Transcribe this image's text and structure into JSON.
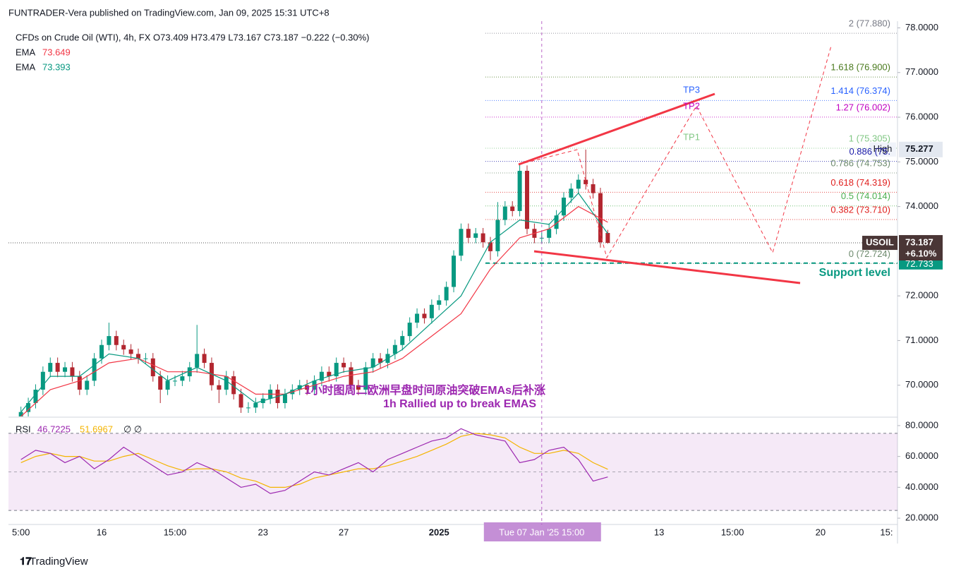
{
  "chart_data": {
    "type": "candlestick",
    "title": "FUNTRADER-Vera published on TradingView.com, Jan 09, 2025 15:31 UTC+8",
    "legend": "CFDs on Crude Oil (WTI), 4h, FX  O73.409  H73.479  L73.167  C73.187  −0.222 (−0.30%)",
    "up_color": "#089981",
    "down_color": "#b2262f",
    "open": [
      69.3,
      69.4,
      69.6,
      69.9,
      70.3,
      70.5,
      70.3,
      70.4,
      70.2,
      69.9,
      70.1,
      70.6,
      70.9,
      71.1,
      70.9,
      70.8,
      70.7,
      70.6,
      70.6,
      70.2,
      69.9,
      70.1,
      70.1,
      70.2,
      70.4,
      70.7,
      70.5,
      70.0,
      69.9,
      70.2,
      69.8,
      69.5,
      69.5,
      69.6,
      69.7,
      69.9,
      69.6,
      69.8,
      69.9,
      70.0,
      69.9,
      70.1,
      70.3,
      70.2,
      70.5,
      70.4,
      70.0,
      69.9,
      70.4,
      70.6,
      70.5,
      70.7,
      70.9,
      71.1,
      71.4,
      71.6,
      71.5,
      71.8,
      71.9,
      72.2,
      72.9,
      73.5,
      73.3,
      73.4,
      73.2,
      73.0,
      73.7,
      74.0,
      73.9,
      74.8,
      73.5,
      73.3,
      73.3,
      73.5,
      73.8,
      74.2,
      74.4,
      74.6,
      74.5,
      74.3,
      73.409
    ],
    "high": [
      69.52,
      69.72,
      70.02,
      70.42,
      70.62,
      70.62,
      70.52,
      70.52,
      70.32,
      70.22,
      70.72,
      71.02,
      71.4,
      71.22,
      71.02,
      70.92,
      70.82,
      70.72,
      70.72,
      70.32,
      70.22,
      70.22,
      70.32,
      70.52,
      71.35,
      70.82,
      70.62,
      70.12,
      70.32,
      70.32,
      69.92,
      69.62,
      69.72,
      69.82,
      70.02,
      70.02,
      69.92,
      70.02,
      70.12,
      70.12,
      70.22,
      70.42,
      70.42,
      70.62,
      70.62,
      70.52,
      70.12,
      70.52,
      70.72,
      70.72,
      70.82,
      71.02,
      71.22,
      71.52,
      71.72,
      71.72,
      71.92,
      72.02,
      72.32,
      73.02,
      73.62,
      73.62,
      73.52,
      73.52,
      73.32,
      74.1,
      74.12,
      74.12,
      74.95,
      74.92,
      73.62,
      73.42,
      73.62,
      73.92,
      74.32,
      74.52,
      74.72,
      75.277,
      74.62,
      74.42,
      73.479
    ],
    "low": [
      69.18,
      69.28,
      69.48,
      69.78,
      70.18,
      70.18,
      70.18,
      70.08,
      69.78,
      69.78,
      69.98,
      70.48,
      70.78,
      70.78,
      70.68,
      70.58,
      70.48,
      70.48,
      70.08,
      69.6,
      69.78,
      69.98,
      69.98,
      70.08,
      70.28,
      70.38,
      69.88,
      69.6,
      69.78,
      69.68,
      69.38,
      69.38,
      69.38,
      69.48,
      69.58,
      69.48,
      69.48,
      69.68,
      69.78,
      69.78,
      69.78,
      69.98,
      70.08,
      70.08,
      70.28,
      69.88,
      69.78,
      69.78,
      70.28,
      70.38,
      70.38,
      70.58,
      70.78,
      70.98,
      71.28,
      71.38,
      71.38,
      71.68,
      71.78,
      72.08,
      72.78,
      73.18,
      73.18,
      73.08,
      72.8,
      72.88,
      73.58,
      73.78,
      73.78,
      73.38,
      73.18,
      73.18,
      73.18,
      73.38,
      73.68,
      74.08,
      74.28,
      74.38,
      74.18,
      73.08,
      73.167
    ],
    "close": [
      69.4,
      69.6,
      69.9,
      70.3,
      70.5,
      70.3,
      70.4,
      70.2,
      69.9,
      70.1,
      70.6,
      70.9,
      71.1,
      70.9,
      70.8,
      70.7,
      70.6,
      70.6,
      70.2,
      69.9,
      70.1,
      70.1,
      70.2,
      70.4,
      70.7,
      70.5,
      70.0,
      69.9,
      70.2,
      69.8,
      69.5,
      69.5,
      69.6,
      69.7,
      69.9,
      69.6,
      69.8,
      69.9,
      70.0,
      69.9,
      70.1,
      70.3,
      70.2,
      70.5,
      70.4,
      70.0,
      69.9,
      70.4,
      70.6,
      70.5,
      70.7,
      70.9,
      71.1,
      71.4,
      71.6,
      71.5,
      71.8,
      71.9,
      72.2,
      72.9,
      73.5,
      73.3,
      73.4,
      73.2,
      73.0,
      73.7,
      74.0,
      73.9,
      74.8,
      73.5,
      73.3,
      73.3,
      73.5,
      73.8,
      74.2,
      74.4,
      74.6,
      74.5,
      74.3,
      73.2,
      73.187
    ],
    "xlim": [
      -1.7,
      119.5
    ],
    "xticks": [
      {
        "value": 0,
        "label": "5:00"
      },
      {
        "value": 11,
        "label": "16"
      },
      {
        "value": 21,
        "label": "15:00"
      },
      {
        "value": 33,
        "label": "23"
      },
      {
        "value": 44,
        "label": "27"
      },
      {
        "value": 57,
        "label": "2025"
      },
      {
        "value": 71,
        "label": "Tue 07 Jan '25   15:00"
      },
      {
        "value": 87,
        "label": "13"
      },
      {
        "value": 97,
        "label": "15:00"
      },
      {
        "value": 109,
        "label": "20"
      },
      {
        "value": 118,
        "label": "15:"
      }
    ],
    "ylim": [
      69.3,
      78.15
    ],
    "yticks": [
      {
        "value": 70,
        "label": "70.0000"
      },
      {
        "value": 71,
        "label": "71.0000"
      },
      {
        "value": 72,
        "label": "72.0000"
      },
      {
        "value": 74,
        "label": "74.0000"
      },
      {
        "value": 75,
        "label": "75.0000"
      },
      {
        "value": 76,
        "label": "76.0000"
      },
      {
        "value": 77,
        "label": "77.0000"
      },
      {
        "value": 78,
        "label": "78.0000"
      }
    ],
    "grid": false,
    "ema": [
      {
        "name": "EMA",
        "color": "#f23645",
        "x": [
          0,
          4,
          8,
          12,
          16,
          20,
          24,
          28,
          32,
          36,
          40,
          44,
          48,
          52,
          56,
          60,
          64,
          68,
          72,
          76,
          80
        ],
        "values": [
          69.3,
          69.9,
          70.1,
          70.5,
          70.6,
          70.3,
          70.3,
          70.2,
          69.8,
          69.8,
          70.0,
          70.2,
          70.3,
          70.6,
          71.1,
          71.6,
          72.6,
          73.3,
          73.5,
          74.0,
          73.649
        ]
      },
      {
        "name": "EMA",
        "color": "#089981",
        "x": [
          0,
          4,
          8,
          12,
          16,
          20,
          24,
          28,
          32,
          36,
          40,
          44,
          48,
          52,
          56,
          60,
          64,
          68,
          72,
          76,
          80
        ],
        "values": [
          69.4,
          70.2,
          70.2,
          70.7,
          70.6,
          70.1,
          70.4,
          70.1,
          69.6,
          69.8,
          70.1,
          70.3,
          70.4,
          70.8,
          71.4,
          72.0,
          73.2,
          73.7,
          73.6,
          74.3,
          73.393
        ]
      }
    ],
    "fib": [
      {
        "label": "2 (77.880)",
        "value": 77.88,
        "color": "#787b86"
      },
      {
        "label": "1.618 (76.900)",
        "value": 76.9,
        "color": "#4a7a1e"
      },
      {
        "label": "1.414 (76.374)",
        "value": 76.374,
        "color": "#2962ff"
      },
      {
        "label": "1.27 (76.002)",
        "value": 76.002,
        "color": "#c000c0"
      },
      {
        "label": "1 (75.305)",
        "value": 75.305,
        "color": "#81c784"
      },
      {
        "label": "0.886 (75.",
        "value": 75.011,
        "color": "#1a1aa8"
      },
      {
        "label": "0.786 (74.753)",
        "value": 74.753,
        "color": "#6d8a6d"
      },
      {
        "label": "0.618 (74.319)",
        "value": 74.319,
        "color": "#e0201e"
      },
      {
        "label": "0.5 (74.014)",
        "value": 74.014,
        "color": "#4caf50"
      },
      {
        "label": "0.382 (73.710)",
        "value": 73.71,
        "color": "#e0201e"
      },
      {
        "label": "0 (72.724)",
        "value": 72.724,
        "color": "#6d8a6d"
      }
    ],
    "support": {
      "label": "Support level",
      "value": 72.733,
      "color": "#089981"
    },
    "high_tag": "High",
    "symbol_tag": "USOIL",
    "change_tag": "+6.10%",
    "annotations": {
      "tp3": "TP3",
      "tp2": "TP2",
      "tp1": "TP1",
      "note_cn": "1小时图周二欧洲早盘时间原油突破EMAs后补涨",
      "note_en": "1h Rallied up to break EMAS"
    },
    "rsi": {
      "name": "RSI",
      "color": "#9c27b0",
      "ma_color": "#f4b400",
      "extra": "∅  ∅",
      "x": [
        0,
        2,
        4,
        6,
        8,
        10,
        12,
        14,
        16,
        18,
        20,
        22,
        24,
        26,
        28,
        30,
        32,
        34,
        36,
        38,
        40,
        42,
        44,
        46,
        48,
        50,
        52,
        54,
        56,
        58,
        60,
        62,
        64,
        66,
        68,
        70,
        72,
        74,
        76,
        78,
        80
      ],
      "values": [
        58,
        64,
        62,
        56,
        60,
        52,
        58,
        66,
        60,
        54,
        48,
        50,
        56,
        52,
        46,
        40,
        42,
        36,
        38,
        44,
        50,
        48,
        52,
        56,
        50,
        58,
        62,
        66,
        70,
        72,
        78,
        74,
        72,
        70,
        56,
        58,
        64,
        66,
        58,
        44,
        46.7225
      ],
      "ma": [
        56,
        60,
        62,
        60,
        60,
        57,
        57,
        60,
        62,
        58,
        54,
        51,
        52,
        52,
        50,
        46,
        44,
        40,
        40,
        42,
        46,
        48,
        50,
        52,
        52,
        54,
        57,
        60,
        64,
        68,
        73,
        75,
        74,
        72,
        66,
        62,
        62,
        64,
        62,
        56,
        51.6967
      ],
      "ylim": [
        15,
        85
      ],
      "band": [
        25,
        75
      ],
      "midline": 50,
      "yticks": [
        {
          "value": 20,
          "label": "20.0000"
        },
        {
          "value": 40,
          "label": "40.0000"
        },
        {
          "value": 60,
          "label": "60.0000"
        },
        {
          "value": 80,
          "label": "80.0000"
        }
      ]
    },
    "footer": "TradingView"
  }
}
